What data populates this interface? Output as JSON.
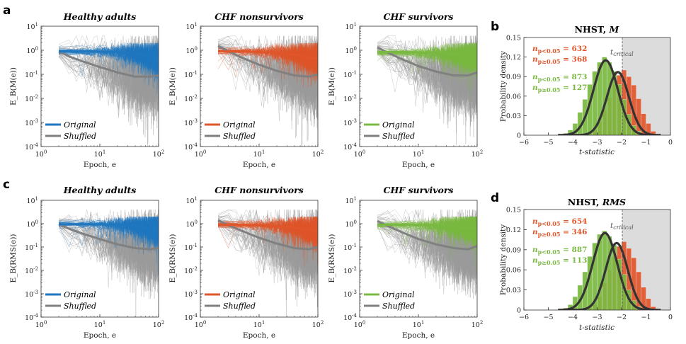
{
  "colors": {
    "healthy": "#1f77c0",
    "nonsurv": "#e0562a",
    "surv": "#7ab940",
    "shuffled": "#808080",
    "shade": "#dcdcdc",
    "curve": "#333333"
  },
  "labels": {
    "panel_a": "a",
    "panel_b": "b",
    "panel_c": "c",
    "panel_d": "d",
    "title_healthy": "Healthy adults",
    "title_nonsurv": "CHF nonsurvivors",
    "title_surv": "CHF survivors",
    "xlabel": "Epoch, e",
    "ylabel_M": "E_B(M(e))",
    "ylabel_RMS": "E_B(RMS(e))",
    "legend_original": "Original",
    "legend_shuffled": "Shuffled",
    "hist_xlabel": "t-statistic",
    "hist_ylabel": "Probability density",
    "hist_title_b": "NHST, ",
    "hist_title_b_var": "M",
    "hist_title_d": "NHST, ",
    "hist_title_d_var": "RMS",
    "t_critical": "t_critical"
  },
  "chart_data": [
    {
      "id": "a-healthy",
      "type": "line",
      "panel": "a",
      "title": "Healthy adults",
      "xlabel": "Epoch, e",
      "ylabel": "E_B(M(e))",
      "xscale": "log",
      "yscale": "log",
      "xlim": [
        1,
        100
      ],
      "ylim": [
        0.0001,
        10
      ],
      "x_ticks": [
        "10^0",
        "10^1",
        "10^2"
      ],
      "y_ticks": [
        "10^-4",
        "10^-3",
        "10^-2",
        "10^-1",
        "10^0",
        "10^1"
      ],
      "series": [
        {
          "name": "Original",
          "x": [
            2,
            5,
            10,
            20,
            40,
            70,
            100
          ],
          "values": [
            0.9,
            0.9,
            0.88,
            0.85,
            0.75,
            0.55,
            0.45
          ]
        },
        {
          "name": "Shuffled",
          "x": [
            2,
            3,
            5,
            10,
            20,
            40,
            70,
            100
          ],
          "values": [
            0.9,
            0.55,
            0.35,
            0.2,
            0.12,
            0.08,
            0.08,
            0.09
          ]
        }
      ]
    },
    {
      "id": "a-nonsurv",
      "type": "line",
      "panel": "a",
      "title": "CHF nonsurvivors",
      "xlabel": "Epoch, e",
      "ylabel": "E_B(M(e))",
      "xscale": "log",
      "yscale": "log",
      "xlim": [
        1,
        100
      ],
      "ylim": [
        0.0001,
        10
      ],
      "x_ticks": [
        "10^0",
        "10^1",
        "10^2"
      ],
      "y_ticks": [
        "10^-4",
        "10^-3",
        "10^-2",
        "10^-1",
        "10^0",
        "10^1"
      ],
      "series": [
        {
          "name": "Original",
          "x": [
            2,
            5,
            10,
            20,
            40,
            70,
            100
          ],
          "values": [
            0.9,
            0.88,
            0.85,
            0.78,
            0.65,
            0.5,
            0.42
          ]
        },
        {
          "name": "Shuffled",
          "x": [
            2,
            3,
            5,
            10,
            20,
            40,
            70,
            100
          ],
          "values": [
            1.5,
            0.9,
            0.5,
            0.25,
            0.14,
            0.09,
            0.08,
            0.1
          ]
        }
      ]
    },
    {
      "id": "a-surv",
      "type": "line",
      "panel": "a",
      "title": "CHF survivors",
      "xlabel": "Epoch, e",
      "ylabel": "E_B(M(e))",
      "xscale": "log",
      "yscale": "log",
      "xlim": [
        1,
        100
      ],
      "ylim": [
        0.0001,
        10
      ],
      "x_ticks": [
        "10^0",
        "10^1",
        "10^2"
      ],
      "y_ticks": [
        "10^-4",
        "10^-3",
        "10^-2",
        "10^-1",
        "10^0",
        "10^1"
      ],
      "series": [
        {
          "name": "Original",
          "x": [
            2,
            5,
            10,
            20,
            40,
            70,
            100
          ],
          "values": [
            0.85,
            0.85,
            0.82,
            0.78,
            0.72,
            0.65,
            0.6
          ]
        },
        {
          "name": "Shuffled",
          "x": [
            2,
            3,
            5,
            10,
            20,
            40,
            70,
            100
          ],
          "values": [
            1.3,
            0.8,
            0.45,
            0.22,
            0.13,
            0.09,
            0.09,
            0.12
          ]
        }
      ]
    },
    {
      "id": "c-healthy",
      "type": "line",
      "panel": "c",
      "title": "Healthy adults",
      "xlabel": "Epoch, e",
      "ylabel": "E_B(RMS(e))",
      "xscale": "log",
      "yscale": "log",
      "xlim": [
        1,
        100
      ],
      "ylim": [
        0.0001,
        10
      ],
      "x_ticks": [
        "10^0",
        "10^1",
        "10^2"
      ],
      "y_ticks": [
        "10^-4",
        "10^-3",
        "10^-2",
        "10^-1",
        "10^0",
        "10^1"
      ],
      "series": [
        {
          "name": "Original",
          "x": [
            2,
            5,
            10,
            20,
            40,
            70,
            100
          ],
          "values": [
            0.95,
            0.95,
            0.93,
            0.9,
            0.82,
            0.65,
            0.55
          ]
        },
        {
          "name": "Shuffled",
          "x": [
            2,
            3,
            5,
            10,
            20,
            40,
            70,
            100
          ],
          "values": [
            0.95,
            0.6,
            0.38,
            0.22,
            0.13,
            0.09,
            0.08,
            0.09
          ]
        }
      ]
    },
    {
      "id": "c-nonsurv",
      "type": "line",
      "panel": "c",
      "title": "CHF nonsurvivors",
      "xlabel": "Epoch, e",
      "ylabel": "E_B(RMS(e))",
      "xscale": "log",
      "yscale": "log",
      "xlim": [
        1,
        100
      ],
      "ylim": [
        0.0001,
        10
      ],
      "x_ticks": [
        "10^0",
        "10^1",
        "10^2"
      ],
      "y_ticks": [
        "10^-4",
        "10^-3",
        "10^-2",
        "10^-1",
        "10^0",
        "10^1"
      ],
      "series": [
        {
          "name": "Original",
          "x": [
            2,
            5,
            10,
            20,
            40,
            70,
            100
          ],
          "values": [
            0.9,
            0.88,
            0.85,
            0.78,
            0.68,
            0.55,
            0.48
          ]
        },
        {
          "name": "Shuffled",
          "x": [
            2,
            3,
            5,
            10,
            20,
            40,
            70,
            100
          ],
          "values": [
            1.4,
            0.85,
            0.5,
            0.25,
            0.14,
            0.09,
            0.08,
            0.1
          ]
        }
      ]
    },
    {
      "id": "c-surv",
      "type": "line",
      "panel": "c",
      "title": "CHF survivors",
      "xlabel": "Epoch, e",
      "ylabel": "E_B(RMS(e))",
      "xscale": "log",
      "yscale": "log",
      "xlim": [
        1,
        100
      ],
      "ylim": [
        0.0001,
        10
      ],
      "x_ticks": [
        "10^0",
        "10^1",
        "10^2"
      ],
      "y_ticks": [
        "10^-4",
        "10^-3",
        "10^-2",
        "10^-1",
        "10^0",
        "10^1"
      ],
      "series": [
        {
          "name": "Original",
          "x": [
            2,
            5,
            10,
            20,
            40,
            70,
            100
          ],
          "values": [
            0.9,
            0.9,
            0.88,
            0.85,
            0.78,
            0.7,
            0.65
          ]
        },
        {
          "name": "Shuffled",
          "x": [
            2,
            3,
            5,
            10,
            20,
            40,
            70,
            100
          ],
          "values": [
            1.3,
            0.8,
            0.45,
            0.22,
            0.13,
            0.09,
            0.08,
            0.11
          ]
        }
      ]
    },
    {
      "id": "b",
      "type": "bar",
      "panel": "b",
      "title": "NHST, M",
      "xlabel": "t-statistic",
      "ylabel": "Probability density",
      "xlim": [
        -6,
        0
      ],
      "ylim": [
        0,
        0.15
      ],
      "x_ticks": [
        "−6",
        "−5",
        "−4",
        "−3",
        "−2",
        "−1",
        "0"
      ],
      "y_ticks": [
        "0",
        "0.03",
        "0.06",
        "0.09",
        "0.12",
        "0.15"
      ],
      "t_critical": -1.97,
      "annotations": {
        "orange_lt": "n_{p<0.05} = 632",
        "orange_ge": "n_{p≥0.05} = 368",
        "green_lt": "n_{p<0.05} = 873",
        "green_ge": "n_{p≥0.05} = 127"
      },
      "bin_edges": [
        -4.4,
        -4.2,
        -4.0,
        -3.8,
        -3.6,
        -3.4,
        -3.2,
        -3.0,
        -2.8,
        -2.6,
        -2.4,
        -2.2,
        -2.0,
        -1.8,
        -1.6,
        -1.4,
        -1.2,
        -1.0,
        -0.8,
        -0.6
      ],
      "series": [
        {
          "name": "CHF nonsurvivors",
          "fit_mean": -2.15,
          "fit_sd": 0.45,
          "fit_peak": 0.097,
          "values": [
            0,
            0,
            0,
            0,
            0,
            0.003,
            0.008,
            0.02,
            0.038,
            0.058,
            0.078,
            0.092,
            0.1,
            0.09,
            0.077,
            0.056,
            0.033,
            0.018,
            0.006
          ]
        },
        {
          "name": "CHF survivors",
          "fit_mean": -2.65,
          "fit_sd": 0.5,
          "fit_peak": 0.115,
          "values": [
            0.003,
            0.008,
            0.018,
            0.035,
            0.055,
            0.078,
            0.098,
            0.112,
            0.12,
            0.112,
            0.098,
            0.078,
            0.055,
            0.032,
            0.015,
            0.006,
            0.002,
            0,
            0
          ]
        }
      ]
    },
    {
      "id": "d",
      "type": "bar",
      "panel": "d",
      "title": "NHST, RMS",
      "xlabel": "t-statistic",
      "ylabel": "Probability density",
      "xlim": [
        -6,
        0
      ],
      "ylim": [
        0,
        0.15
      ],
      "x_ticks": [
        "−6",
        "−5",
        "−4",
        "−3",
        "−2",
        "−1",
        "0"
      ],
      "y_ticks": [
        "0",
        "0.03",
        "0.06",
        "0.09",
        "0.12",
        "0.15"
      ],
      "t_critical": -1.97,
      "annotations": {
        "orange_lt": "n_{p<0.05} = 654",
        "orange_ge": "n_{p≥0.05} = 346",
        "green_lt": "n_{p<0.05} = 887",
        "green_ge": "n_{p≥0.05} = 113"
      },
      "bin_edges": [
        -4.4,
        -4.2,
        -4.0,
        -3.8,
        -3.6,
        -3.4,
        -3.2,
        -3.0,
        -2.8,
        -2.6,
        -2.4,
        -2.2,
        -2.0,
        -1.8,
        -1.6,
        -1.4,
        -1.2,
        -1.0,
        -0.8,
        -0.6
      ],
      "series": [
        {
          "name": "CHF nonsurvivors",
          "fit_mean": -2.2,
          "fit_sd": 0.45,
          "fit_peak": 0.1,
          "values": [
            0,
            0,
            0,
            0,
            0,
            0.003,
            0.008,
            0.02,
            0.04,
            0.06,
            0.08,
            0.095,
            0.102,
            0.092,
            0.078,
            0.057,
            0.034,
            0.017,
            0.005
          ]
        },
        {
          "name": "CHF survivors",
          "fit_mean": -2.68,
          "fit_sd": 0.5,
          "fit_peak": 0.115,
          "values": [
            0.003,
            0.008,
            0.02,
            0.037,
            0.057,
            0.08,
            0.1,
            0.113,
            0.118,
            0.11,
            0.097,
            0.076,
            0.053,
            0.03,
            0.014,
            0.005,
            0.002,
            0,
            0
          ]
        }
      ]
    }
  ]
}
